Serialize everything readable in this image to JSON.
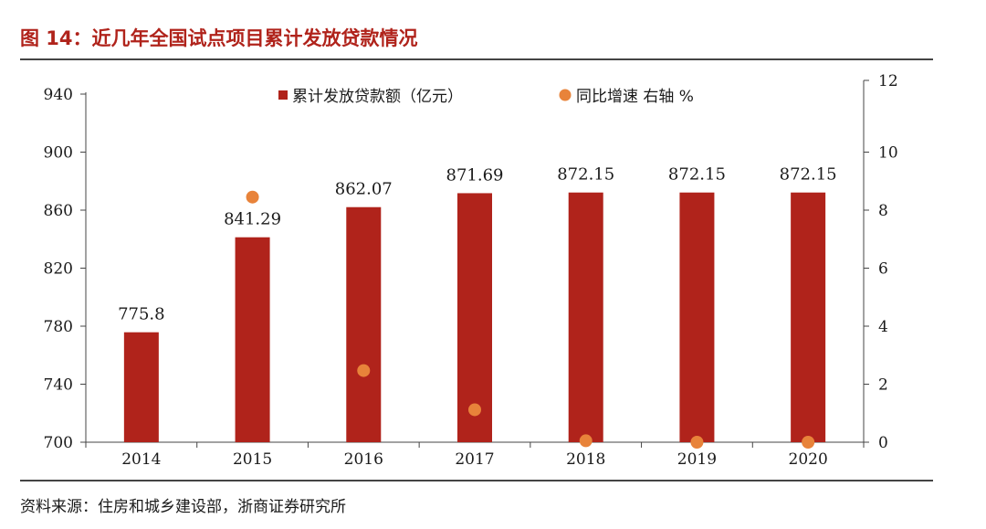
{
  "figure": {
    "title": "图 14：近几年全国试点项目累计发放贷款情况",
    "source": "资料来源：住房和城乡建设部，浙商证券研究所"
  },
  "chart_data": {
    "type": "bar",
    "categories": [
      "2014",
      "2015",
      "2016",
      "2017",
      "2018",
      "2019",
      "2020"
    ],
    "series": [
      {
        "name": "累计发放贷款额（亿元）",
        "kind": "bar",
        "axis": "left",
        "color": "#b0231b",
        "values": [
          775.8,
          841.29,
          862.07,
          871.69,
          872.15,
          872.15,
          872.15
        ],
        "labels": [
          "775.8",
          "841.29",
          "862.07",
          "871.69",
          "872.15",
          "872.15",
          "872.15"
        ]
      },
      {
        "name": "同比增速 右轴 %",
        "kind": "scatter",
        "axis": "right",
        "color": "#e8833a",
        "values": [
          null,
          8.45,
          2.47,
          1.12,
          0.05,
          0.0,
          0.0
        ]
      }
    ],
    "y_left": {
      "min": 700,
      "max": 940,
      "ticks": [
        "700",
        "740",
        "780",
        "820",
        "860",
        "900",
        "940"
      ]
    },
    "y_right": {
      "min": 0,
      "max": 12,
      "ticks": [
        "0",
        "2",
        "4",
        "6",
        "8",
        "10",
        "12"
      ]
    },
    "xlabel": "",
    "ylabel": "",
    "legend_position": "top-center",
    "grid": false
  }
}
